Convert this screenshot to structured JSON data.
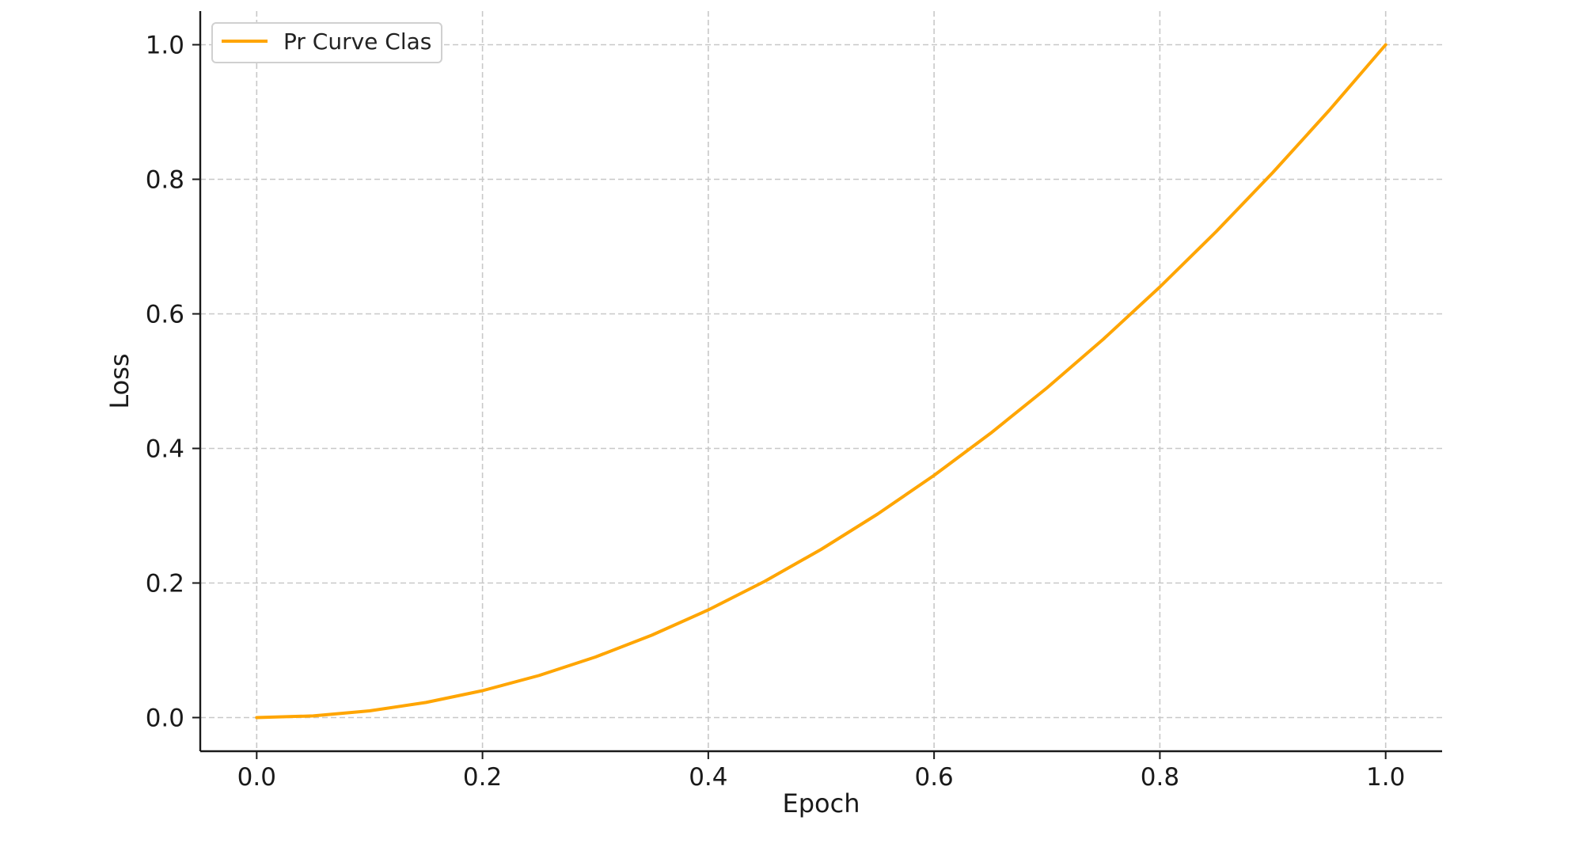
{
  "chart_data": {
    "type": "line",
    "title": "",
    "xlabel": "Epoch",
    "ylabel": "Loss",
    "xlim": [
      -0.05,
      1.05
    ],
    "ylim": [
      -0.05,
      1.05
    ],
    "x_ticks": [
      0.0,
      0.2,
      0.4,
      0.6,
      0.8,
      1.0
    ],
    "x_tick_labels": [
      "0.0",
      "0.2",
      "0.4",
      "0.6",
      "0.8",
      "1.0"
    ],
    "y_ticks": [
      0.0,
      0.2,
      0.4,
      0.6,
      0.8,
      1.0
    ],
    "y_tick_labels": [
      "0.0",
      "0.2",
      "0.4",
      "0.6",
      "0.8",
      "1.0"
    ],
    "grid": true,
    "legend": {
      "placement": "top-left"
    },
    "series": [
      {
        "name": "Pr Curve Clas",
        "color": "#FFA500",
        "x": [
          0.0,
          0.05,
          0.1,
          0.15,
          0.2,
          0.25,
          0.3,
          0.35,
          0.4,
          0.45,
          0.5,
          0.55,
          0.6,
          0.65,
          0.7,
          0.75,
          0.8,
          0.85,
          0.9,
          0.95,
          1.0
        ],
        "y": [
          0.0,
          0.0025,
          0.01,
          0.0225,
          0.04,
          0.0625,
          0.09,
          0.1225,
          0.16,
          0.2025,
          0.25,
          0.3025,
          0.36,
          0.4225,
          0.49,
          0.5625,
          0.64,
          0.7225,
          0.81,
          0.9025,
          1.0
        ]
      }
    ]
  }
}
